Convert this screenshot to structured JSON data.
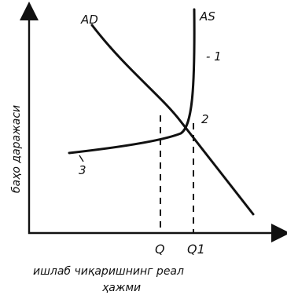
{
  "diagram": {
    "curves": {
      "ad": {
        "label": "AD"
      },
      "as": {
        "label": "AS"
      }
    },
    "segment_labels": {
      "one": "- 1",
      "two": "2",
      "three": "3"
    },
    "points": {
      "q": "Q",
      "q1": "Q1"
    },
    "axes": {
      "y_label": "баҳо даражаси",
      "x_label_line1": "ишлаб чиқаришнинг реал",
      "x_label_line2": "ҳажми"
    }
  }
}
